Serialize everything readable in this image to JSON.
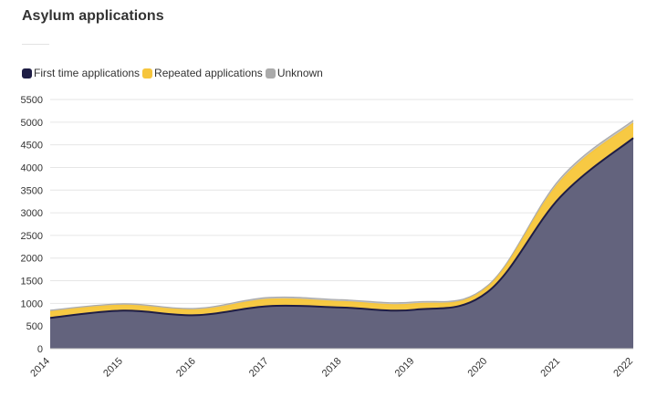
{
  "chart_data": {
    "type": "area",
    "stacked": true,
    "title": "Asylum applications",
    "xlabel": "",
    "ylabel": "",
    "x": [
      "2014",
      "2015",
      "2016",
      "2017",
      "2018",
      "2019",
      "2020",
      "2021",
      "2022"
    ],
    "ylim": [
      0,
      5500
    ],
    "yticks": [
      0,
      500,
      1000,
      1500,
      2000,
      2500,
      3000,
      3500,
      4000,
      4500,
      5000,
      5500
    ],
    "legend_position": "top-left",
    "series": [
      {
        "name": "First time applications",
        "color": "#1e1d45",
        "fill": "#63637d",
        "values": [
          680,
          840,
          740,
          940,
          910,
          860,
          1250,
          3350,
          4650
        ]
      },
      {
        "name": "Repeated applications",
        "color": "#f6c53c",
        "fill": "#f7c943",
        "values": [
          140,
          120,
          120,
          150,
          130,
          130,
          110,
          350,
          330
        ]
      },
      {
        "name": "Unknown",
        "color": "#aaaaaa",
        "fill": "#c4c4c4",
        "values": [
          30,
          30,
          30,
          40,
          40,
          40,
          30,
          60,
          60
        ]
      }
    ]
  }
}
